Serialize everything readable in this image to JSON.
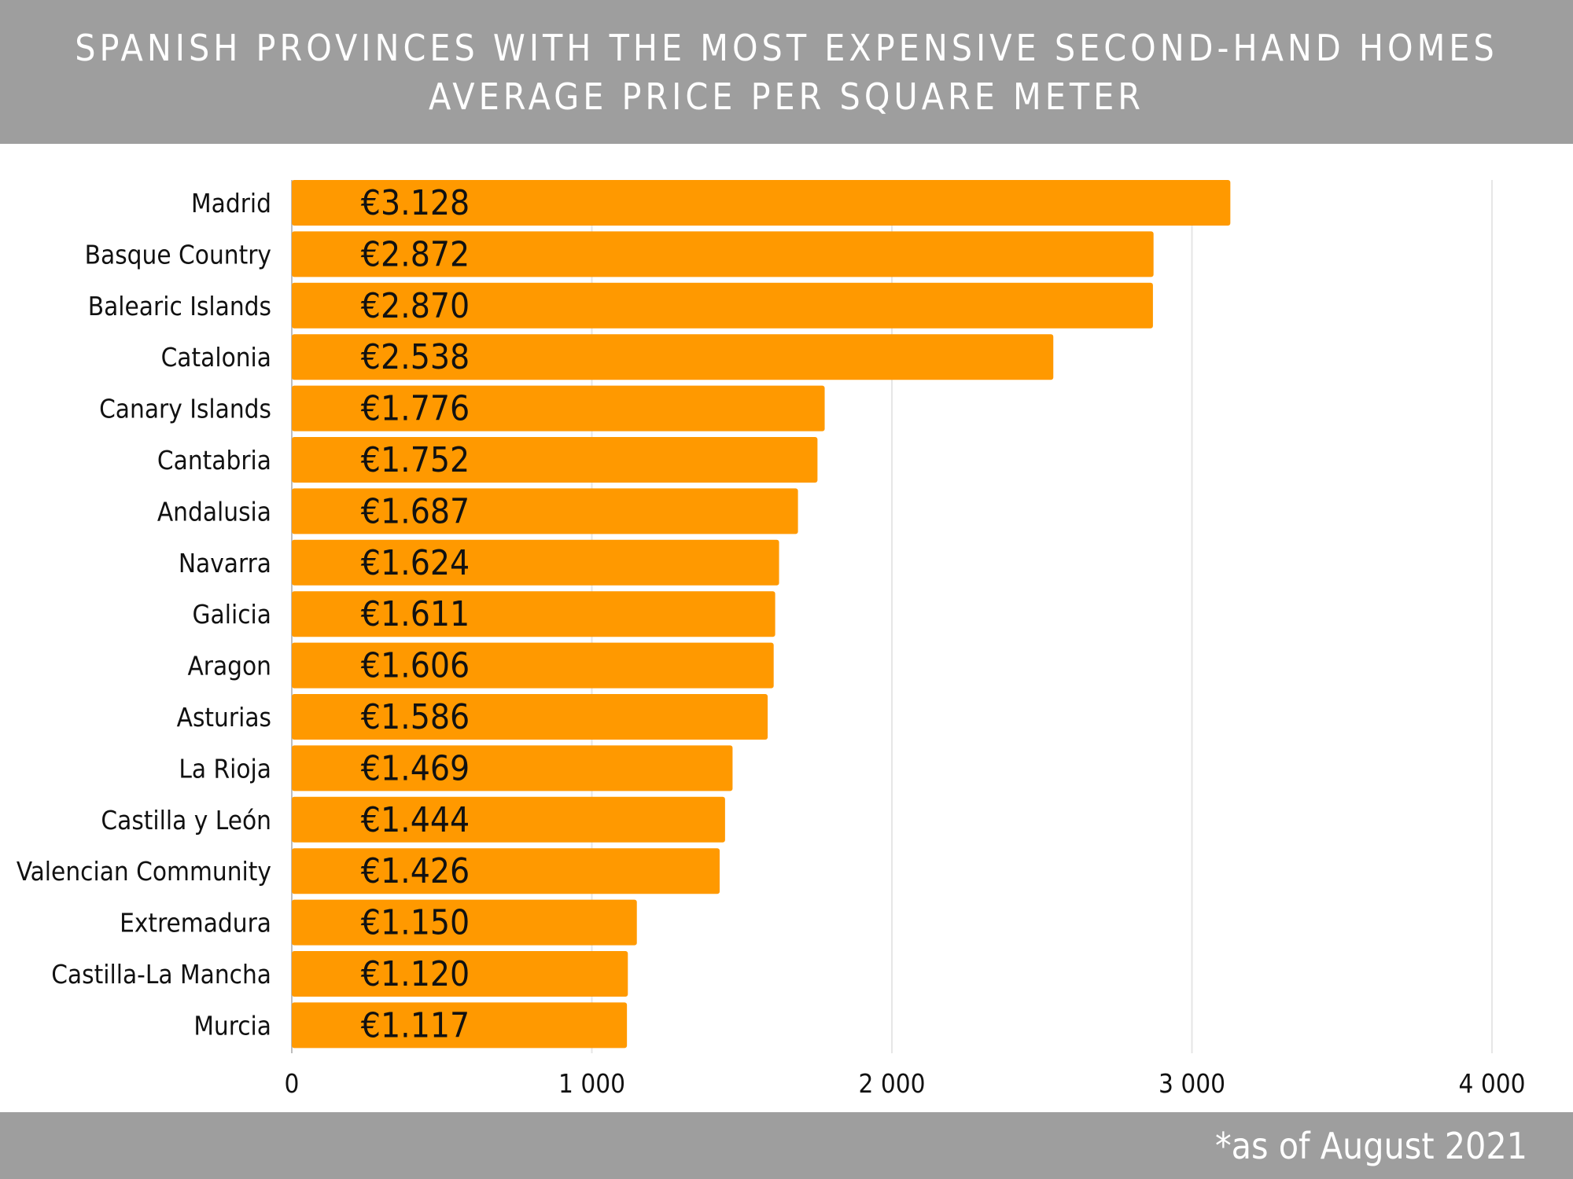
{
  "header": {
    "title_line1": "SPANISH PROVINCES WITH THE MOST EXPENSIVE SECOND-HAND HOMES",
    "title_line2": "AVERAGE PRICE PER SQUARE METER"
  },
  "footer": {
    "note": "*as of August 2021"
  },
  "colors": {
    "bar": "#ff9900",
    "header_bg": "#9e9e9e",
    "grid": "#e6e6e6"
  },
  "chart_data": {
    "type": "bar",
    "orientation": "horizontal",
    "title": "SPANISH PROVINCES WITH THE MOST EXPENSIVE SECOND-HAND HOMES",
    "subtitle": "AVERAGE PRICE PER SQUARE METER",
    "categories": [
      "Madrid",
      "Basque Country",
      "Balearic Islands",
      "Catalonia",
      "Canary Islands",
      "Cantabria",
      "Andalusia",
      "Navarra",
      "Galicia",
      "Aragon",
      "Asturias",
      "La Rioja",
      "Castilla y León",
      "Valencian Community",
      "Extremadura",
      "Castilla-La Mancha",
      "Murcia"
    ],
    "values": [
      3128,
      2872,
      2870,
      2538,
      1776,
      1752,
      1687,
      1624,
      1611,
      1606,
      1586,
      1469,
      1444,
      1426,
      1150,
      1120,
      1117
    ],
    "data_labels": [
      "€3.128",
      "€2.872",
      "€2.870",
      "€2.538",
      "€1.776",
      "€1.752",
      "€1.687",
      "€1.624",
      "€1.611",
      "€1.606",
      "€1.586",
      "€1.469",
      "€1.444",
      "€1.426",
      "€1.150",
      "€1.120",
      "€1.117"
    ],
    "xlim": [
      0,
      4000
    ],
    "ticks": [
      0,
      1000,
      2000,
      3000,
      4000
    ],
    "tick_labels": [
      "0",
      "1 000",
      "2 000",
      "3 000",
      "4 000"
    ],
    "grid": true,
    "legend": "none",
    "xlabel": "",
    "ylabel": ""
  }
}
